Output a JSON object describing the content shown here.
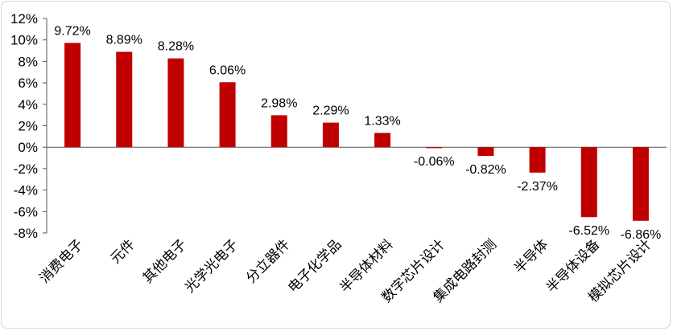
{
  "chart_data": {
    "type": "bar",
    "title": "",
    "xlabel": "",
    "ylabel": "",
    "categories": [
      "消费电子",
      "元件",
      "其他电子",
      "光学光电子",
      "分立器件",
      "电子化学品",
      "半导体材料",
      "数字芯片设计",
      "集成电路封测",
      "半导体",
      "半导体设备",
      "模拟芯片设计"
    ],
    "values": [
      9.72,
      8.89,
      8.28,
      6.06,
      2.98,
      2.29,
      1.33,
      -0.06,
      -0.82,
      -2.37,
      -6.52,
      -6.86
    ],
    "value_labels": [
      "9.72%",
      "8.89%",
      "8.28%",
      "6.06%",
      "2.98%",
      "2.29%",
      "1.33%",
      "-0.06%",
      "-0.82%",
      "-2.37%",
      "-6.52%",
      "-6.86%"
    ],
    "ylim": [
      -8,
      12
    ],
    "yticks": [
      12,
      10,
      8,
      6,
      4,
      2,
      0,
      -2,
      -4,
      -6,
      -8
    ],
    "ytick_labels": [
      "12%",
      "10%",
      "8%",
      "6%",
      "4%",
      "2%",
      "0%",
      "-2%",
      "-4%",
      "-6%",
      "-8%"
    ],
    "grid": false,
    "legend": "none",
    "bar_color": "#c00000"
  }
}
